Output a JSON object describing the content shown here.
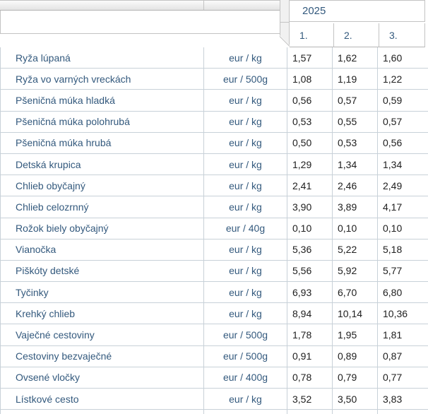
{
  "header": {
    "year": "2025",
    "months": [
      "1.",
      "2.",
      "3."
    ]
  },
  "table": {
    "rows": [
      {
        "name": "Ryža lúpaná",
        "unit": "eur / kg",
        "values": [
          "1,57",
          "1,62",
          "1,60"
        ]
      },
      {
        "name": "Ryža vo varných vreckách",
        "unit": "eur / 500g",
        "values": [
          "1,08",
          "1,19",
          "1,22"
        ]
      },
      {
        "name": "Pšeničná múka hladká",
        "unit": "eur / kg",
        "values": [
          "0,56",
          "0,57",
          "0,59"
        ]
      },
      {
        "name": "Pšeničná múka polohrubá",
        "unit": "eur / kg",
        "values": [
          "0,53",
          "0,55",
          "0,57"
        ]
      },
      {
        "name": "Pšeničná múka hrubá",
        "unit": "eur / kg",
        "values": [
          "0,50",
          "0,53",
          "0,56"
        ]
      },
      {
        "name": "Detská krupica",
        "unit": "eur / kg",
        "values": [
          "1,29",
          "1,34",
          "1,34"
        ]
      },
      {
        "name": "Chlieb obyčajný",
        "unit": "eur / kg",
        "values": [
          "2,41",
          "2,46",
          "2,49"
        ]
      },
      {
        "name": "Chlieb celozrnný",
        "unit": "eur / kg",
        "values": [
          "3,90",
          "3,89",
          "4,17"
        ]
      },
      {
        "name": "Rožok biely obyčajný",
        "unit": "eur / 40g",
        "values": [
          "0,10",
          "0,10",
          "0,10"
        ]
      },
      {
        "name": "Vianočka",
        "unit": "eur / kg",
        "values": [
          "5,36",
          "5,22",
          "5,18"
        ]
      },
      {
        "name": "Piškóty detské",
        "unit": "eur / kg",
        "values": [
          "5,56",
          "5,92",
          "5,77"
        ]
      },
      {
        "name": "Tyčinky",
        "unit": "eur / kg",
        "values": [
          "6,93",
          "6,70",
          "6,80"
        ]
      },
      {
        "name": "Krehký chlieb",
        "unit": "eur / kg",
        "values": [
          "8,94",
          "10,14",
          "10,36"
        ]
      },
      {
        "name": "Vaječné cestoviny",
        "unit": "eur / 500g",
        "values": [
          "1,78",
          "1,95",
          "1,81"
        ]
      },
      {
        "name": "Cestoviny bezvaječné",
        "unit": "eur / 500g",
        "values": [
          "0,91",
          "0,89",
          "0,87"
        ]
      },
      {
        "name": "Ovsené vločky",
        "unit": "eur / 400g",
        "values": [
          "0,78",
          "0,79",
          "0,77"
        ]
      },
      {
        "name": "Lístkové cesto",
        "unit": "eur / kg",
        "values": [
          "3,52",
          "3,50",
          "3,83"
        ]
      }
    ]
  },
  "colors": {
    "accent_text": "#33597d",
    "value_text": "#202020",
    "grid_border": "#c8d1d8",
    "chrome_border": "#c3c3c3"
  }
}
